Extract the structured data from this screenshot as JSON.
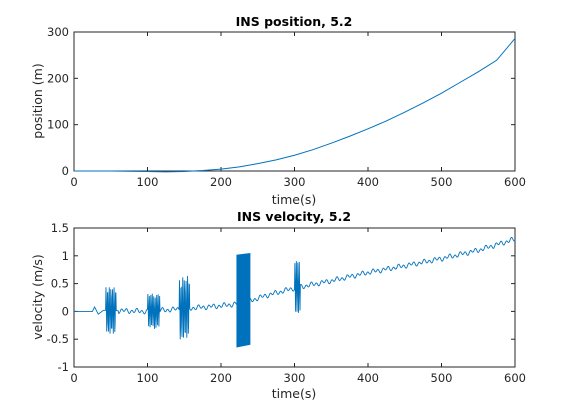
{
  "chart_data": [
    {
      "type": "line",
      "title": "INS position, 5.2",
      "xlabel": "time(s)",
      "ylabel": "position (m)",
      "xlim": [
        0,
        600
      ],
      "ylim": [
        0,
        300
      ],
      "xticks": [
        "0",
        "100",
        "200",
        "300",
        "400",
        "500",
        "600"
      ],
      "yticks": [
        "0",
        "100",
        "200",
        "300"
      ],
      "grid": false,
      "line_color": "#0072BD",
      "series": [
        {
          "x": [
            0,
            50,
            100,
            125,
            150,
            175,
            200,
            225,
            250,
            275,
            300,
            325,
            350,
            375,
            400,
            425,
            450,
            475,
            500,
            525,
            550,
            575,
            600
          ],
          "y": [
            0,
            0,
            -1,
            -2,
            -1,
            1,
            4,
            9,
            16,
            24,
            34,
            46,
            60,
            75,
            91,
            108,
            127,
            147,
            168,
            191,
            214,
            239,
            286
          ]
        }
      ]
    },
    {
      "type": "line",
      "title": "INS velocity, 5.2",
      "xlabel": "time(s)",
      "ylabel": "velocity (m/s)",
      "xlim": [
        0,
        600
      ],
      "ylim": [
        -1,
        1.5
      ],
      "xticks": [
        "0",
        "100",
        "200",
        "300",
        "400",
        "500",
        "600"
      ],
      "yticks": [
        "-1",
        "-0.5",
        "0",
        "0.5",
        "1",
        "1.5"
      ],
      "grid": false,
      "line_color": "#0072BD",
      "series": [
        {
          "trend": {
            "x": [
              0,
              25,
              28,
              33,
              40,
              100,
              150,
              200,
              230,
              260,
              300,
              350,
              400,
              450,
              500,
              550,
              600
            ],
            "y": [
              0.0,
              0.0,
              0.08,
              -0.05,
              0.02,
              0.0,
              0.05,
              0.1,
              0.15,
              0.28,
              0.42,
              0.55,
              0.7,
              0.82,
              0.95,
              1.1,
              1.3
            ]
          },
          "wiggle_amplitude": 0.05,
          "bursts": [
            {
              "t0": 43,
              "t1": 57,
              "amp": 0.42,
              "period": 2.2
            },
            {
              "t0": 100,
              "t1": 117,
              "amp": 0.28,
              "period": 2.0
            },
            {
              "t0": 143,
              "t1": 157,
              "amp": 0.55,
              "period": 2.2
            },
            {
              "t0": 300,
              "t1": 308,
              "amp": 0.45,
              "period": 2.0
            }
          ],
          "dense_band": {
            "t0": 221,
            "t1": 240,
            "ymin_start": -0.65,
            "ymax_start": 1.02,
            "ymin_end": -0.6,
            "ymax_end": 1.05
          }
        }
      ]
    }
  ]
}
